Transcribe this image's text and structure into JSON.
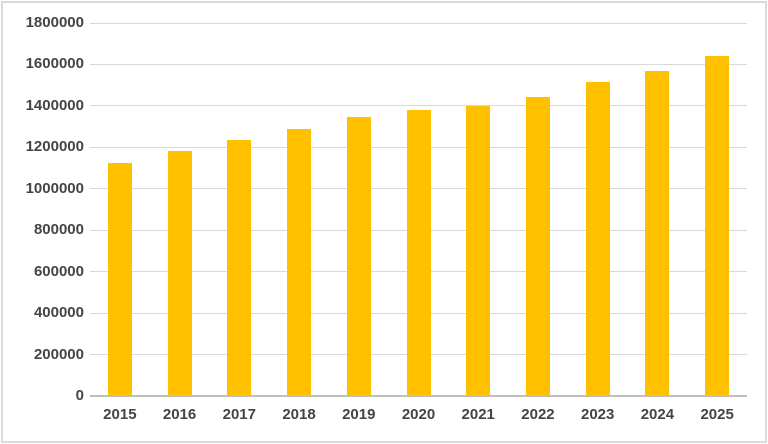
{
  "chart_data": {
    "type": "bar",
    "title": "",
    "xlabel": "",
    "ylabel": "",
    "categories": [
      "2015",
      "2016",
      "2017",
      "2018",
      "2019",
      "2020",
      "2021",
      "2022",
      "2023",
      "2024",
      "2025"
    ],
    "values": [
      1125000,
      1180000,
      1235000,
      1290000,
      1345000,
      1380000,
      1400000,
      1445000,
      1515000,
      1570000,
      1640000
    ],
    "ylim": [
      0,
      1800000
    ],
    "ytick_step": 200000,
    "ytick_labels": [
      "0",
      "200000",
      "400000",
      "600000",
      "800000",
      "1000000",
      "1200000",
      "1400000",
      "1600000",
      "1800000"
    ],
    "grid": true,
    "legend_position": "none",
    "bar_color": "#ffc000",
    "gridline_color": "#d9d9d9",
    "axis_line_color": "#bfbfbf",
    "label_color": "#444444",
    "frame_border_color": "#d6dadd"
  }
}
